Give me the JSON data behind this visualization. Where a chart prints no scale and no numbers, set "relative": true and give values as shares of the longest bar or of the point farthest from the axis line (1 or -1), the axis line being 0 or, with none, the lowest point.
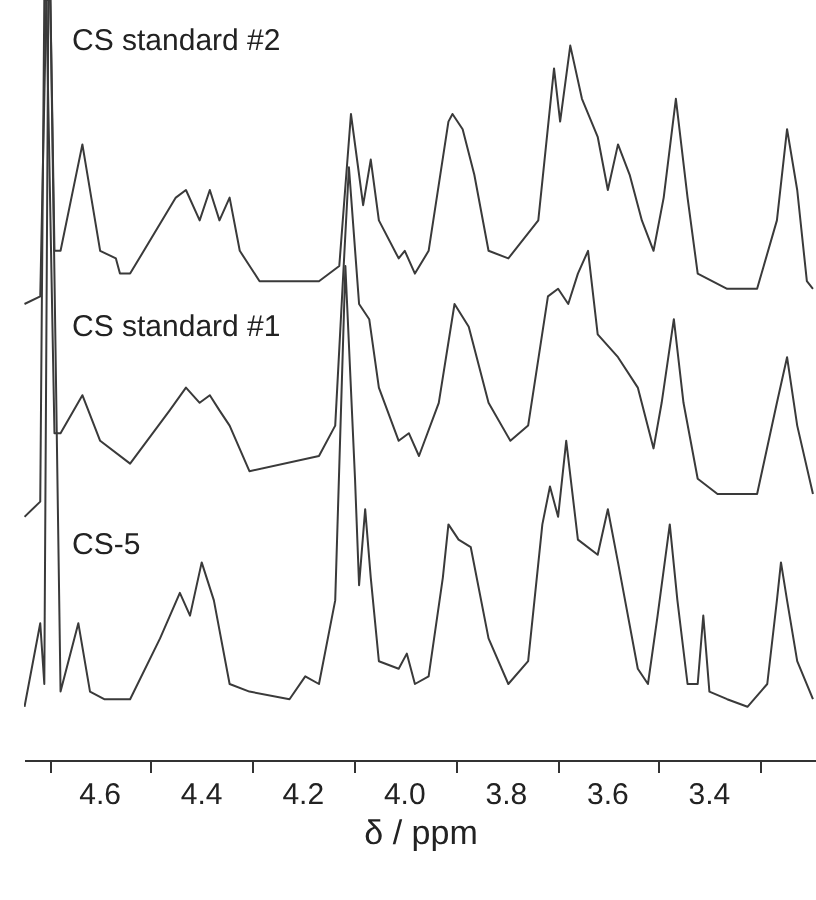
{
  "chart_data": {
    "type": "line",
    "relative": true,
    "xlabel": "δ / ppm",
    "xlim": [
      4.75,
      3.19
    ],
    "xticks": [
      {
        "value": 4.7,
        "label": null
      },
      4.6,
      {
        "value": 4.5,
        "label": null
      },
      4.4,
      {
        "value": 4.3,
        "label": null
      },
      4.2,
      {
        "value": 4.1,
        "label": null
      },
      {
        "value": 4.0,
        "label": "4.0"
      },
      {
        "value": 3.9,
        "label": null
      },
      3.8,
      {
        "value": 3.7,
        "label": null
      },
      3.6,
      {
        "value": 3.5,
        "label": null
      },
      3.4,
      {
        "value": 3.3,
        "label": null
      }
    ],
    "series": [
      {
        "name": "CS standard #2",
        "color": "#3a3a3a",
        "x": [
          4.749,
          4.718,
          4.706,
          4.698,
          4.69,
          4.678,
          4.635,
          4.6,
          4.569,
          4.561,
          4.541,
          4.451,
          4.431,
          4.404,
          4.384,
          4.365,
          4.345,
          4.325,
          4.286,
          4.169,
          4.129,
          4.106,
          4.082,
          4.067,
          4.051,
          4.012,
          4.0,
          3.98,
          3.953,
          3.914,
          3.906,
          3.886,
          3.863,
          3.835,
          3.796,
          3.737,
          3.706,
          3.694,
          3.674,
          3.651,
          3.62,
          3.6,
          3.58,
          3.557,
          3.533,
          3.51,
          3.49,
          3.466,
          3.443,
          3.423,
          3.365,
          3.306,
          3.267,
          3.247,
          3.227,
          3.208,
          3.196
        ],
        "values": [
          0.6,
          0.61,
          1.0,
          1.0,
          0.67,
          0.67,
          0.81,
          0.67,
          0.66,
          0.64,
          0.64,
          0.74,
          0.75,
          0.71,
          0.75,
          0.71,
          0.74,
          0.67,
          0.63,
          0.63,
          0.65,
          0.85,
          0.73,
          0.79,
          0.71,
          0.66,
          0.67,
          0.64,
          0.67,
          0.84,
          0.85,
          0.83,
          0.77,
          0.67,
          0.66,
          0.71,
          0.91,
          0.84,
          0.94,
          0.87,
          0.82,
          0.75,
          0.81,
          0.77,
          0.71,
          0.67,
          0.74,
          0.87,
          0.74,
          0.64,
          0.62,
          0.62,
          0.71,
          0.83,
          0.75,
          0.63,
          0.62
        ]
      },
      {
        "name": "CS standard #1",
        "color": "#3a3a3a",
        "x": [
          4.749,
          4.718,
          4.71,
          4.706,
          4.69,
          4.678,
          4.635,
          4.6,
          4.541,
          4.463,
          4.431,
          4.404,
          4.384,
          4.365,
          4.345,
          4.306,
          4.169,
          4.137,
          4.11,
          4.09,
          4.07,
          4.051,
          4.012,
          3.992,
          3.972,
          3.933,
          3.902,
          3.874,
          3.835,
          3.792,
          3.757,
          3.718,
          3.698,
          3.678,
          3.659,
          3.639,
          3.62,
          3.58,
          3.541,
          3.51,
          3.494,
          3.47,
          3.451,
          3.423,
          3.384,
          3.306,
          3.267,
          3.247,
          3.227,
          3.196
        ],
        "values": [
          0.32,
          0.34,
          1.0,
          1.0,
          0.43,
          0.43,
          0.48,
          0.42,
          0.39,
          0.46,
          0.49,
          0.47,
          0.48,
          0.46,
          0.44,
          0.38,
          0.4,
          0.44,
          0.78,
          0.6,
          0.58,
          0.49,
          0.42,
          0.43,
          0.4,
          0.47,
          0.6,
          0.57,
          0.47,
          0.42,
          0.44,
          0.61,
          0.62,
          0.6,
          0.64,
          0.67,
          0.56,
          0.53,
          0.49,
          0.41,
          0.47,
          0.58,
          0.47,
          0.37,
          0.35,
          0.35,
          0.47,
          0.53,
          0.44,
          0.35
        ]
      },
      {
        "name": "CS-5",
        "color": "#3a3a3a",
        "x": [
          4.749,
          4.718,
          4.71,
          4.702,
          4.698,
          4.678,
          4.643,
          4.62,
          4.592,
          4.541,
          4.482,
          4.443,
          4.423,
          4.4,
          4.376,
          4.345,
          4.306,
          4.227,
          4.196,
          4.169,
          4.137,
          4.117,
          4.098,
          4.09,
          4.078,
          4.067,
          4.051,
          4.012,
          3.996,
          3.98,
          3.953,
          3.925,
          3.914,
          3.894,
          3.87,
          3.835,
          3.796,
          3.757,
          3.729,
          3.714,
          3.698,
          3.682,
          3.659,
          3.62,
          3.6,
          3.58,
          3.541,
          3.521,
          3.502,
          3.478,
          3.463,
          3.443,
          3.423,
          3.412,
          3.4,
          3.365,
          3.325,
          3.286,
          3.267,
          3.259,
          3.247,
          3.227,
          3.196
        ],
        "values": [
          0.07,
          0.18,
          0.1,
          1.0,
          1.0,
          0.09,
          0.18,
          0.09,
          0.08,
          0.08,
          0.16,
          0.22,
          0.19,
          0.26,
          0.21,
          0.1,
          0.09,
          0.08,
          0.11,
          0.1,
          0.21,
          0.65,
          0.37,
          0.23,
          0.33,
          0.24,
          0.13,
          0.12,
          0.14,
          0.1,
          0.11,
          0.24,
          0.31,
          0.29,
          0.28,
          0.16,
          0.1,
          0.13,
          0.31,
          0.36,
          0.32,
          0.42,
          0.29,
          0.27,
          0.33,
          0.26,
          0.12,
          0.1,
          0.19,
          0.31,
          0.21,
          0.1,
          0.1,
          0.19,
          0.09,
          0.08,
          0.07,
          0.1,
          0.21,
          0.26,
          0.21,
          0.13,
          0.08
        ]
      }
    ]
  }
}
